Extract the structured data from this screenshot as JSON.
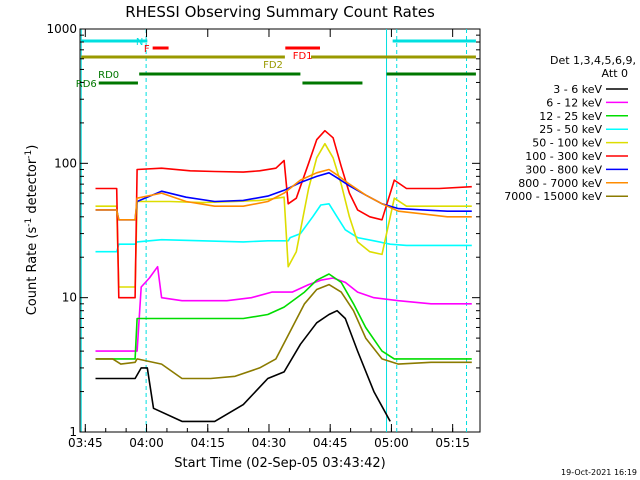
{
  "chart_data": {
    "type": "line",
    "title": "RHESSI Observing Summary Count Rates",
    "xlabel": "Start Time (02-Sep-05 03:43:42)",
    "ylabel": "Count Rate (s",
    "ylabel_sup": "-1",
    "ylabel_tail": " detector",
    "ylabel_tail_sup": "-1",
    "ylabel_end": ")",
    "x_unit": "minutes since 03:43:42",
    "xlim": [
      0,
      98
    ],
    "ylim": [
      1,
      1000
    ],
    "yscale": "log",
    "x_ticks": [
      {
        "t": 1.3,
        "label": "03:45"
      },
      {
        "t": 16.3,
        "label": "04:00"
      },
      {
        "t": 31.3,
        "label": "04:15"
      },
      {
        "t": 46.3,
        "label": "04:30"
      },
      {
        "t": 61.3,
        "label": "04:45"
      },
      {
        "t": 76.3,
        "label": "05:00"
      },
      {
        "t": 91.3,
        "label": "05:15"
      }
    ],
    "y_ticks": [
      {
        "v": 1,
        "label": "1"
      },
      {
        "v": 10,
        "label": "10"
      },
      {
        "v": 100,
        "label": "100"
      },
      {
        "v": 1000,
        "label": "1000"
      }
    ],
    "legend": {
      "header": [
        "Det 1,3,4,5,6,9,",
        "Att 0"
      ],
      "placement": "right"
    },
    "series": [
      {
        "name": "3 - 6 keV",
        "color": "#000000",
        "points": [
          [
            3.8,
            2.5
          ],
          [
            10,
            2.5
          ],
          [
            13.5,
            2.5
          ],
          [
            15,
            3
          ],
          [
            16.5,
            3
          ],
          [
            18,
            1.5
          ],
          [
            25,
            1.2
          ],
          [
            33,
            1.2
          ],
          [
            40,
            1.6
          ],
          [
            46,
            2.5
          ],
          [
            50,
            2.8
          ],
          [
            54,
            4.5
          ],
          [
            58,
            6.5
          ],
          [
            61,
            7.5
          ],
          [
            63,
            8
          ],
          [
            65,
            7
          ],
          [
            68,
            4
          ],
          [
            72,
            2
          ],
          [
            76,
            1.2
          ]
        ]
      },
      {
        "name": "6 - 12 keV",
        "color": "#ff00ff",
        "points": [
          [
            3.8,
            4
          ],
          [
            14,
            4
          ],
          [
            15,
            12
          ],
          [
            17,
            14
          ],
          [
            19,
            17
          ],
          [
            20,
            10
          ],
          [
            25,
            9.5
          ],
          [
            30,
            9.5
          ],
          [
            36,
            9.5
          ],
          [
            42,
            10
          ],
          [
            47,
            11
          ],
          [
            52,
            11
          ],
          [
            56,
            12.5
          ],
          [
            59,
            13.5
          ],
          [
            62,
            14
          ],
          [
            65,
            13
          ],
          [
            68,
            11
          ],
          [
            72,
            10
          ],
          [
            78,
            9.5
          ],
          [
            86,
            9
          ],
          [
            93,
            9
          ],
          [
            96,
            9
          ]
        ]
      },
      {
        "name": "12 - 25 keV",
        "color": "#00dd00",
        "points": [
          [
            3.8,
            3.5
          ],
          [
            8,
            3.5
          ],
          [
            13.5,
            3.5
          ],
          [
            14,
            7
          ],
          [
            18,
            7
          ],
          [
            25,
            7
          ],
          [
            32,
            7
          ],
          [
            40,
            7
          ],
          [
            46,
            7.5
          ],
          [
            50,
            8.5
          ],
          [
            55,
            11
          ],
          [
            58,
            13.5
          ],
          [
            61,
            15
          ],
          [
            64,
            13
          ],
          [
            67,
            9
          ],
          [
            70,
            6
          ],
          [
            74,
            4
          ],
          [
            77,
            3.5
          ],
          [
            85,
            3.5
          ],
          [
            93,
            3.5
          ],
          [
            96,
            3.5
          ]
        ]
      },
      {
        "name": "25 - 50 keV",
        "color": "#00ffff",
        "points": [
          [
            3.8,
            22
          ],
          [
            9,
            22
          ],
          [
            9.5,
            25
          ],
          [
            13.5,
            25
          ],
          [
            14,
            26
          ],
          [
            20,
            27
          ],
          [
            30,
            26.5
          ],
          [
            40,
            26
          ],
          [
            46,
            26.5
          ],
          [
            51,
            26.5
          ],
          [
            51.5,
            28
          ],
          [
            54,
            30
          ],
          [
            57,
            40
          ],
          [
            59,
            49
          ],
          [
            61,
            50
          ],
          [
            63,
            40
          ],
          [
            65,
            32
          ],
          [
            68,
            28
          ],
          [
            72,
            26.5
          ],
          [
            76,
            25
          ],
          [
            80,
            24.5
          ],
          [
            88,
            24.5
          ],
          [
            96,
            24.5
          ]
        ]
      },
      {
        "name": "50 - 100 keV",
        "color": "#dddd00",
        "points": [
          [
            3.8,
            48
          ],
          [
            9,
            48
          ],
          [
            9.5,
            12
          ],
          [
            13.5,
            12
          ],
          [
            14,
            52
          ],
          [
            22,
            52
          ],
          [
            30,
            51
          ],
          [
            38,
            52
          ],
          [
            44,
            53
          ],
          [
            50,
            56
          ],
          [
            51,
            17
          ],
          [
            53,
            22
          ],
          [
            56,
            65
          ],
          [
            58,
            110
          ],
          [
            60,
            140
          ],
          [
            62,
            110
          ],
          [
            64,
            70
          ],
          [
            66,
            40
          ],
          [
            68,
            26
          ],
          [
            71,
            22
          ],
          [
            74,
            21
          ],
          [
            77,
            55
          ],
          [
            80,
            48
          ],
          [
            88,
            48
          ],
          [
            96,
            48
          ]
        ]
      },
      {
        "name": "100 - 300 keV",
        "color": "#ff0000",
        "points": [
          [
            3.8,
            65
          ],
          [
            9,
            65
          ],
          [
            9.5,
            10
          ],
          [
            13.5,
            10
          ],
          [
            14,
            90
          ],
          [
            20,
            92
          ],
          [
            27,
            88
          ],
          [
            33,
            87
          ],
          [
            40,
            86
          ],
          [
            44,
            88
          ],
          [
            48,
            92
          ],
          [
            50,
            105
          ],
          [
            51,
            50
          ],
          [
            53,
            55
          ],
          [
            56,
            100
          ],
          [
            58,
            150
          ],
          [
            60,
            175
          ],
          [
            62,
            155
          ],
          [
            64,
            95
          ],
          [
            66,
            60
          ],
          [
            68,
            45
          ],
          [
            71,
            40
          ],
          [
            74,
            38
          ],
          [
            77,
            75
          ],
          [
            80,
            65
          ],
          [
            88,
            65
          ],
          [
            96,
            67
          ]
        ]
      },
      {
        "name": "300 - 800 keV",
        "color": "#0000ff",
        "points": [
          [
            3.8,
            45
          ],
          [
            9,
            45
          ],
          [
            9.5,
            38
          ],
          [
            13.5,
            38
          ],
          [
            14,
            52
          ],
          [
            20,
            62
          ],
          [
            26,
            56
          ],
          [
            33,
            52
          ],
          [
            40,
            53
          ],
          [
            46,
            57
          ],
          [
            50,
            63
          ],
          [
            54,
            72
          ],
          [
            58,
            80
          ],
          [
            61,
            85
          ],
          [
            63,
            78
          ],
          [
            66,
            68
          ],
          [
            70,
            58
          ],
          [
            74,
            50
          ],
          [
            78,
            46
          ],
          [
            84,
            45
          ],
          [
            90,
            44
          ],
          [
            96,
            44
          ]
        ]
      },
      {
        "name": "800 - 7000 keV",
        "color": "#ff8c00",
        "points": [
          [
            3.8,
            45
          ],
          [
            9,
            45
          ],
          [
            9.5,
            38
          ],
          [
            13.5,
            38
          ],
          [
            14,
            55
          ],
          [
            20,
            60
          ],
          [
            26,
            52
          ],
          [
            33,
            48
          ],
          [
            40,
            48
          ],
          [
            46,
            52
          ],
          [
            50,
            60
          ],
          [
            54,
            75
          ],
          [
            58,
            85
          ],
          [
            61,
            90
          ],
          [
            63,
            82
          ],
          [
            66,
            70
          ],
          [
            70,
            58
          ],
          [
            74,
            50
          ],
          [
            78,
            44
          ],
          [
            84,
            42
          ],
          [
            90,
            40
          ],
          [
            96,
            40
          ]
        ]
      },
      {
        "name": "7000 - 15000 keV",
        "color": "#8b7b00",
        "points": [
          [
            3.8,
            3.5
          ],
          [
            8,
            3.5
          ],
          [
            10,
            3.2
          ],
          [
            13.5,
            3.3
          ],
          [
            14,
            3.5
          ],
          [
            20,
            3.2
          ],
          [
            25,
            2.5
          ],
          [
            32,
            2.5
          ],
          [
            38,
            2.6
          ],
          [
            44,
            3
          ],
          [
            48,
            3.5
          ],
          [
            52,
            6
          ],
          [
            55,
            9
          ],
          [
            58,
            11.5
          ],
          [
            61,
            12.5
          ],
          [
            64,
            11
          ],
          [
            67,
            8
          ],
          [
            70,
            5
          ],
          [
            74,
            3.5
          ],
          [
            78,
            3.2
          ],
          [
            86,
            3.3
          ],
          [
            93,
            3.3
          ],
          [
            96,
            3.3
          ]
        ]
      }
    ],
    "state_bars": [
      {
        "label": "N",
        "color": "#00e0e0",
        "segments": [
          [
            0.3,
            16.5
          ],
          [
            76.6,
            97
          ]
        ],
        "level": 0
      },
      {
        "label": "F",
        "color": "#ff0000",
        "segments": [
          [
            17.8,
            21.7
          ]
        ],
        "level": 1
      },
      {
        "label": "FD1",
        "color": "#ff0000",
        "segments": [
          [
            50.3,
            58.8
          ]
        ],
        "level": 1
      },
      {
        "label": "FD2",
        "color": "#999900",
        "segments": [
          [
            0.3,
            50.2
          ],
          [
            56.6,
            97
          ]
        ],
        "level": 2
      },
      {
        "label": "RD0",
        "color": "#007700",
        "segments": [
          [
            14.5,
            54
          ],
          [
            75.1,
            97
          ]
        ],
        "level": 3
      },
      {
        "label": "RD6",
        "color": "#007700",
        "segments": [
          [
            4.6,
            14.2
          ],
          [
            54.5,
            69.2
          ]
        ],
        "level": 4
      }
    ],
    "attenuator_lines": {
      "solid": [
        0.3,
        75.1
      ],
      "dashed": [
        16.2,
        77.6,
        94.7
      ]
    },
    "timestamp": "19-Oct-2021 16:19"
  }
}
